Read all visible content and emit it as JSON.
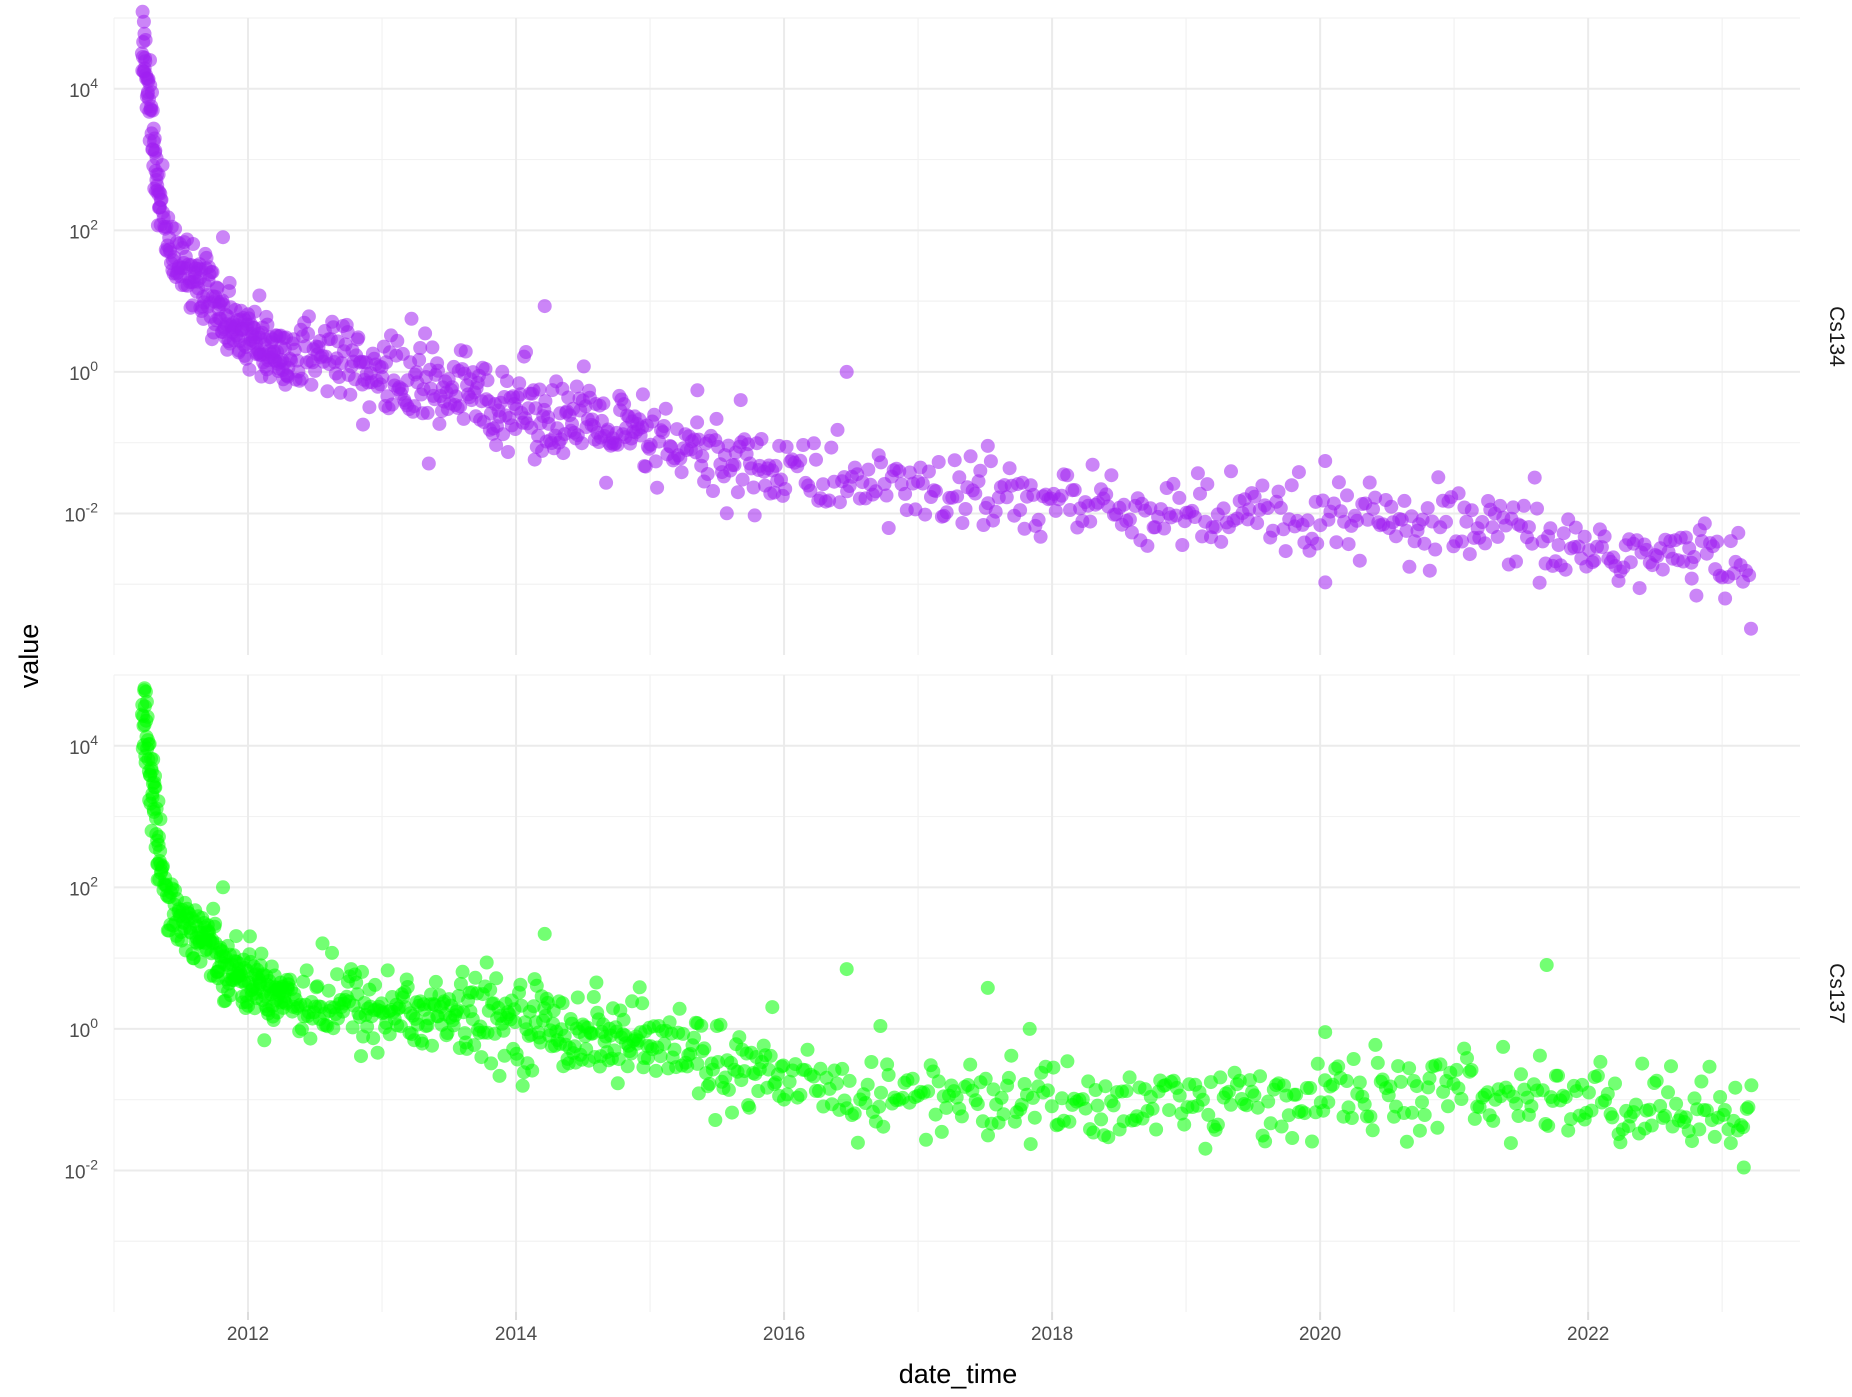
{
  "chart_data": {
    "type": "scatter",
    "xlabel": "date_time",
    "ylabel": "value",
    "x_tick_labels": [
      "2012",
      "2014",
      "2016",
      "2018",
      "2020",
      "2022"
    ],
    "xlim": [
      "2011-01-01",
      "2023-08-01"
    ],
    "y_scale": "log10",
    "y_tick_labels": [
      {
        "base": "10",
        "exp": "4"
      },
      {
        "base": "10",
        "exp": "2"
      },
      {
        "base": "10",
        "exp": "0"
      },
      {
        "base": "10",
        "exp": "-2"
      }
    ],
    "ylim": [
      0.0001,
      100000
    ],
    "grid": true,
    "legend": "none",
    "facets": [
      {
        "name": "Cs134",
        "color": "#a020f0",
        "trend": [
          [
            "2011-03-20",
            40000
          ],
          [
            "2011-04-10",
            5000
          ],
          [
            "2011-05-01",
            400
          ],
          [
            "2011-05-20",
            100
          ],
          [
            "2011-06-20",
            40
          ],
          [
            "2011-09-01",
            15
          ],
          [
            "2011-12-01",
            4
          ],
          [
            "2012-03-01",
            2
          ],
          [
            "2012-09-01",
            1.2
          ],
          [
            "2013-06-01",
            0.6
          ],
          [
            "2014-01-01",
            0.35
          ],
          [
            "2014-09-01",
            0.15
          ],
          [
            "2015-06-01",
            0.06
          ],
          [
            "2016-01-01",
            0.04
          ],
          [
            "2016-09-01",
            0.025
          ],
          [
            "2017-06-01",
            0.018
          ],
          [
            "2018-06-01",
            0.012
          ],
          [
            "2019-06-01",
            0.008
          ],
          [
            "2020-06-01",
            0.007
          ],
          [
            "2021-06-01",
            0.005
          ],
          [
            "2022-01-01",
            0.003
          ],
          [
            "2023-03-01",
            0.002
          ]
        ],
        "highlights": [
          [
            "2011-03-25",
            60000
          ],
          [
            "2011-10-25",
            80
          ],
          [
            "2012-02-01",
            12
          ],
          [
            "2014-03-20",
            8.5
          ],
          [
            "2016-06-20",
            1.0
          ],
          [
            "2017-07-10",
            0.09
          ],
          [
            "2020-01-15",
            0.055
          ],
          [
            "2015-05-10",
            0.55
          ],
          [
            "2015-09-05",
            0.4
          ],
          [
            "2012-11-10",
            0.18
          ],
          [
            "2022-10-10",
            0.0012
          ]
        ]
      },
      {
        "name": "Cs137",
        "color": "#00ff00",
        "trend": [
          [
            "2011-03-20",
            40000
          ],
          [
            "2011-04-10",
            5000
          ],
          [
            "2011-05-01",
            400
          ],
          [
            "2011-05-20",
            120
          ],
          [
            "2011-06-20",
            40
          ],
          [
            "2011-09-01",
            20
          ],
          [
            "2011-12-01",
            6
          ],
          [
            "2012-03-01",
            3.5
          ],
          [
            "2012-09-01",
            2.2
          ],
          [
            "2013-06-01",
            1.6
          ],
          [
            "2014-01-01",
            1.3
          ],
          [
            "2014-09-01",
            0.8
          ],
          [
            "2015-06-01",
            0.4
          ],
          [
            "2016-01-01",
            0.15
          ],
          [
            "2016-09-01",
            0.12
          ],
          [
            "2017-06-01",
            0.1
          ],
          [
            "2018-06-01",
            0.09
          ],
          [
            "2019-06-01",
            0.09
          ],
          [
            "2020-06-01",
            0.12
          ],
          [
            "2021-06-01",
            0.12
          ],
          [
            "2022-01-01",
            0.09
          ],
          [
            "2023-03-01",
            0.06
          ]
        ],
        "highlights": [
          [
            "2011-03-25",
            65000
          ],
          [
            "2011-10-25",
            100
          ],
          [
            "2014-03-20",
            22
          ],
          [
            "2016-06-20",
            7
          ],
          [
            "2017-07-10",
            3.8
          ],
          [
            "2021-09-10",
            8
          ],
          [
            "2016-09-20",
            1.1
          ],
          [
            "2017-11-01",
            1.0
          ],
          [
            "2023-03-01",
            0.011
          ],
          [
            "2015-05-10",
            1.2
          ],
          [
            "2020-01-15",
            0.9
          ]
        ]
      }
    ]
  }
}
